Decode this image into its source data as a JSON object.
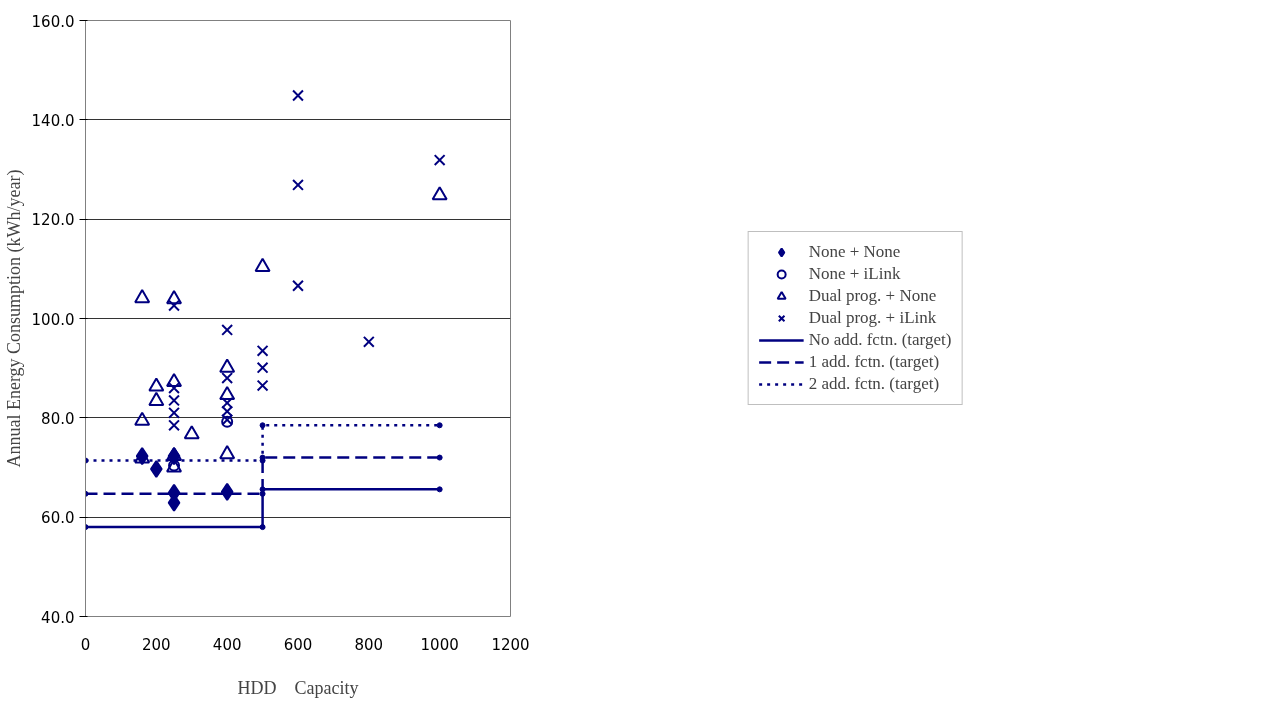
{
  "chart_data": {
    "type": "scatter",
    "xlabel": "HDD　Capacity",
    "ylabel": "Annual Energy Consumption (kWh/year)",
    "xlim": [
      0,
      1200
    ],
    "xticks": [
      0,
      200,
      400,
      600,
      800,
      1000,
      1200
    ],
    "ylim": [
      40,
      160
    ],
    "yticks": [
      {
        "value": 40,
        "label": "40.0"
      },
      {
        "value": 60,
        "label": "60.0"
      },
      {
        "value": 80,
        "label": "80.0"
      },
      {
        "value": 100,
        "label": "100.0"
      },
      {
        "value": 120,
        "label": "120.0"
      },
      {
        "value": 140,
        "label": "140.0"
      },
      {
        "value": 160,
        "label": "160.0"
      }
    ],
    "grid": "y",
    "legend": "right",
    "series": [
      {
        "name": "None + None",
        "marker": "diamond",
        "color": "#000080",
        "x": [
          160,
          200,
          250,
          250,
          250,
          400
        ],
        "values": [
          72.3,
          69.7,
          72.3,
          64.9,
          62.9,
          65.1
        ]
      },
      {
        "name": "None + iLink",
        "marker": "circle",
        "color": "#000080",
        "x": [
          250,
          400
        ],
        "values": [
          70.4,
          79.2
        ]
      },
      {
        "name": "Dual prog. + None",
        "marker": "triangle",
        "color": "#000080",
        "x": [
          160,
          160,
          160,
          200,
          200,
          250,
          250,
          250,
          250,
          300,
          400,
          400,
          400,
          500,
          1000
        ],
        "values": [
          104.1,
          79.4,
          71.8,
          86.3,
          83.4,
          103.9,
          87.2,
          72.3,
          70.0,
          76.7,
          90.1,
          84.6,
          72.7,
          110.4,
          124.8
        ]
      },
      {
        "name": "Dual prog. + iLink",
        "marker": "cross",
        "color": "#000080",
        "x": [
          250,
          250,
          250,
          250,
          250,
          400,
          400,
          400,
          400,
          400,
          500,
          500,
          500,
          600,
          600,
          600,
          800,
          1000
        ],
        "values": [
          102.6,
          86.0,
          83.5,
          81.0,
          78.5,
          97.7,
          88.0,
          83.0,
          81.3,
          79.6,
          93.5,
          90.1,
          86.5,
          144.9,
          126.9,
          106.6,
          95.3,
          131.9
        ]
      },
      {
        "name": "No add. fctn. (target)",
        "type": "line",
        "marker": "circle",
        "line_style": "solid",
        "color": "#000080",
        "x": [
          0,
          500,
          500,
          1000
        ],
        "values": [
          58.0,
          58.0,
          65.6,
          65.6
        ]
      },
      {
        "name": "1 add. fctn. (target)",
        "type": "line",
        "marker": "circle",
        "line_style": "dashed",
        "color": "#000080",
        "x": [
          0,
          500,
          500,
          1000
        ],
        "values": [
          64.7,
          64.7,
          72.0,
          72.0
        ]
      },
      {
        "name": "2 add. fctn. (target)",
        "type": "line",
        "marker": "circle",
        "line_style": "dotted",
        "color": "#000080",
        "x": [
          0,
          500,
          500,
          1000
        ],
        "values": [
          71.4,
          71.4,
          78.5,
          78.5
        ]
      }
    ]
  }
}
